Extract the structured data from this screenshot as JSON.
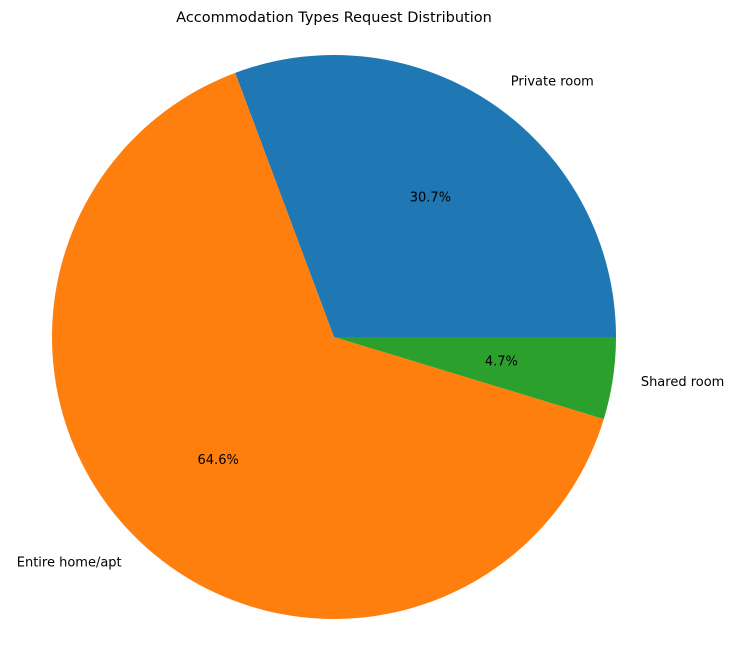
{
  "chart_data": {
    "type": "pie",
    "title": "Accommodation Types Request Distribution",
    "start_angle_deg": 0,
    "direction": "counterclockwise",
    "slices": [
      {
        "label": "Private room",
        "value": 30.7,
        "pct_label": "30.7%",
        "color": "#1f77b4"
      },
      {
        "label": "Entire home/apt",
        "value": 64.6,
        "pct_label": "64.6%",
        "color": "#ff7f0e"
      },
      {
        "label": "Shared room",
        "value": 4.7,
        "pct_label": "4.7%",
        "color": "#2ca02c"
      }
    ]
  }
}
